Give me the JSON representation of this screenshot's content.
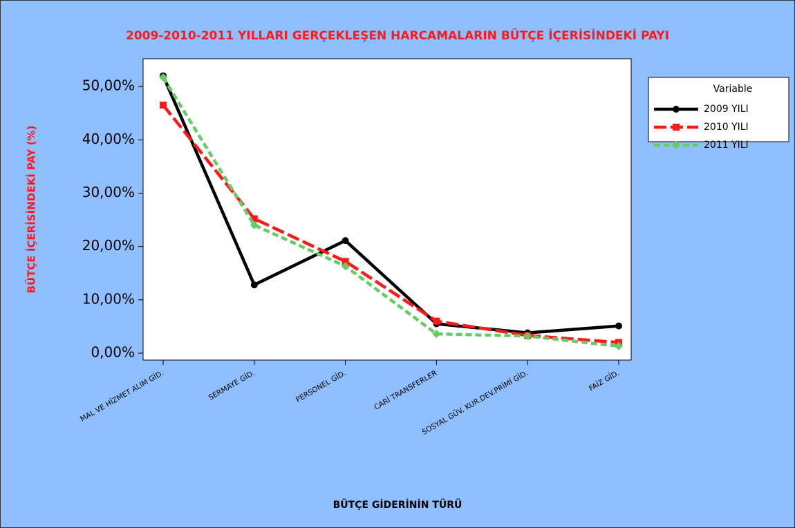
{
  "chart_data": {
    "type": "line",
    "title": "2009-2010-2011 YILLARI GERÇEKLEŞEN HARCAMALARIN BÜTÇE İÇERİSİNDEKİ PAYI",
    "x_label": "BÜTÇE GİDERİNİN TÜRÜ",
    "y_label": "BÜTÇE İÇERİSİNDEKİ PAY (%)",
    "legend_title": "Variable",
    "categories": [
      "MAL VE HİZMET ALIM GİD.",
      "SERMAYE GİD.",
      "PERSONEL GİD.",
      "CARİ TRANSFERLER",
      "SOSYAL GÜV. KUR.DEV.PRİMİ GİD.",
      "FAİZ GİD."
    ],
    "series": [
      {
        "name": "2009 YILI",
        "color": "#000000",
        "values": [
          52.0,
          12.8,
          21.1,
          5.5,
          3.8,
          5.1
        ]
      },
      {
        "name": "2010 YILI",
        "color": "#ff1a1a",
        "values": [
          46.5,
          25.2,
          17.2,
          6.0,
          3.3,
          2.0
        ]
      },
      {
        "name": "2011 YILI",
        "color": "#66cc66",
        "values": [
          51.7,
          24.0,
          16.3,
          3.6,
          3.2,
          1.3
        ]
      }
    ],
    "ylim": [
      -1.3,
      55.2
    ],
    "yticks": [
      {
        "value": 0,
        "label": "0,00%"
      },
      {
        "value": 10,
        "label": "10,00%"
      },
      {
        "value": 20,
        "label": "20,00%"
      },
      {
        "value": 30,
        "label": "30,00%"
      },
      {
        "value": 40,
        "label": "40,00%"
      },
      {
        "value": 50,
        "label": "50,00%"
      }
    ],
    "legend_position": "top-right"
  }
}
